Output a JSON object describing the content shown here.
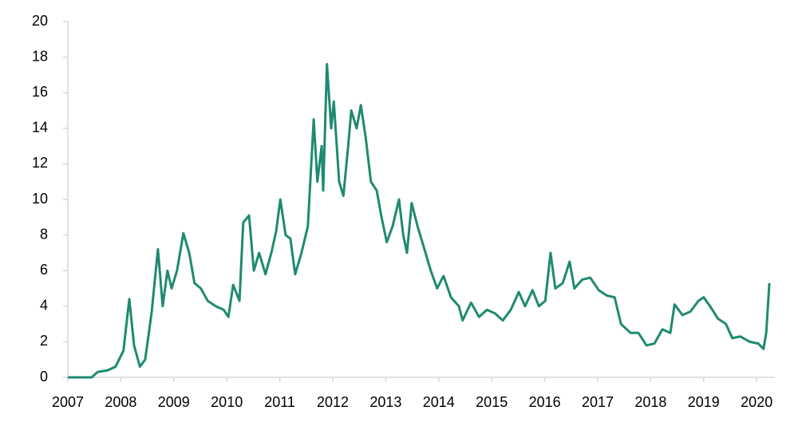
{
  "chart_data": {
    "type": "line",
    "color": "#1f8a70",
    "x": [
      2007.0,
      2007.45,
      2007.56,
      2007.75,
      2007.9,
      2008.05,
      2008.16,
      2008.25,
      2008.36,
      2008.46,
      2008.58,
      2008.7,
      2008.79,
      2008.88,
      2008.96,
      2009.06,
      2009.18,
      2009.29,
      2009.39,
      2009.51,
      2009.64,
      2009.79,
      2009.94,
      2010.03,
      2010.12,
      2010.24,
      2010.31,
      2010.42,
      2010.51,
      2010.61,
      2010.73,
      2010.84,
      2010.93,
      2011.01,
      2011.11,
      2011.2,
      2011.29,
      2011.41,
      2011.53,
      2011.64,
      2011.71,
      2011.79,
      2011.82,
      2011.89,
      2011.97,
      2012.02,
      2012.12,
      2012.2,
      2012.29,
      2012.35,
      2012.45,
      2012.53,
      2012.62,
      2012.72,
      2012.83,
      2012.92,
      2013.02,
      2013.13,
      2013.25,
      2013.33,
      2013.4,
      2013.49,
      2013.6,
      2013.7,
      2013.85,
      2013.97,
      2014.09,
      2014.23,
      2014.38,
      2014.45,
      2014.61,
      2014.76,
      2014.91,
      2015.06,
      2015.21,
      2015.36,
      2015.51,
      2015.63,
      2015.77,
      2015.89,
      2016.01,
      2016.11,
      2016.2,
      2016.34,
      2016.47,
      2016.56,
      2016.71,
      2016.86,
      2017.02,
      2017.17,
      2017.32,
      2017.44,
      2017.62,
      2017.77,
      2017.92,
      2018.07,
      2018.22,
      2018.37,
      2018.45,
      2018.6,
      2018.75,
      2018.9,
      2019.0,
      2019.12,
      2019.27,
      2019.42,
      2019.54,
      2019.69,
      2019.87,
      2020.03,
      2020.13,
      2020.18,
      2020.24
    ],
    "values": [
      0,
      0,
      0.3,
      0.4,
      0.6,
      1.5,
      4.4,
      1.8,
      0.6,
      1.0,
      3.6,
      7.2,
      4.0,
      6.0,
      5.0,
      6.0,
      8.1,
      7.0,
      5.3,
      5.0,
      4.3,
      4.0,
      3.8,
      3.4,
      5.2,
      4.3,
      8.7,
      9.1,
      6.0,
      7.0,
      5.8,
      7.0,
      8.2,
      10.0,
      8.0,
      7.8,
      5.8,
      7.0,
      8.5,
      14.5,
      11.0,
      13.0,
      10.5,
      17.6,
      14.0,
      15.5,
      11.0,
      10.2,
      13.0,
      15.0,
      14.0,
      15.3,
      13.5,
      11.0,
      10.5,
      9.0,
      7.6,
      8.5,
      10.0,
      8.0,
      7.0,
      9.8,
      8.5,
      7.5,
      6.0,
      5.0,
      5.7,
      4.5,
      4.0,
      3.2,
      4.2,
      3.4,
      3.8,
      3.6,
      3.2,
      3.8,
      4.8,
      4.0,
      4.9,
      4.0,
      4.3,
      7.0,
      5.0,
      5.3,
      6.5,
      5.0,
      5.5,
      5.6,
      4.9,
      4.6,
      4.5,
      3.0,
      2.5,
      2.5,
      1.8,
      1.9,
      2.7,
      2.5,
      4.1,
      3.5,
      3.7,
      4.3,
      4.5,
      4.0,
      3.3,
      3.0,
      2.2,
      2.3,
      2.0,
      1.9,
      1.6,
      2.5,
      5.3
    ],
    "xlim": [
      2007,
      2020.35
    ],
    "xticks": [
      2007,
      2008,
      2009,
      2010,
      2011,
      2012,
      2013,
      2014,
      2015,
      2016,
      2017,
      2018,
      2019,
      2020
    ],
    "ylim": [
      0,
      20
    ],
    "yticks": [
      0,
      2,
      4,
      6,
      8,
      10,
      12,
      14,
      16,
      18,
      20
    ],
    "grid": false
  }
}
